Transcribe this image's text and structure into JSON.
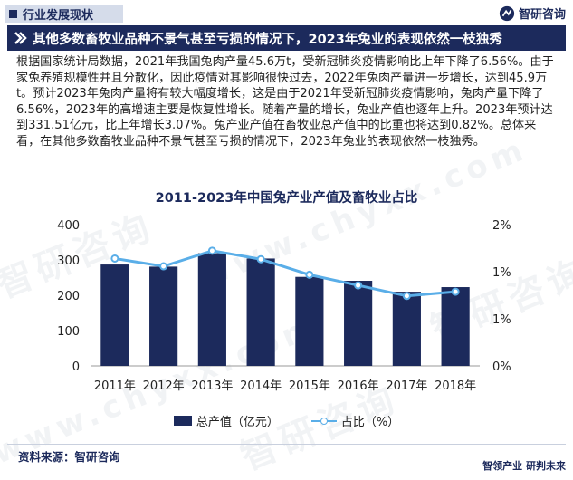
{
  "header": {
    "section_tag": "行业发展现状",
    "brand": "智研咨询",
    "headline": "其他多数畜牧业品种不景气甚至亏损的情况下，2023年兔业的表现依然一枝独秀"
  },
  "body_text": "根据国家统计局数据，2021年我国兔肉产量45.6万t，受新冠肺炎疫情影响比上年下降了6.56%。由于家兔养殖规模性并且分散化，因此疫情对其影响很快过去，2022年兔肉产量进一步增长，达到45.9万t。预计2023年兔肉产量将有较大幅度增长，这是由于2021年受新冠肺炎疫情影响，兔肉产量下降了6.56%，2023年的高增速主要是恢复性增长。随着产量的增长，兔业产值也逐年上升。2023年预计达到331.51亿元，比上年增长3.07%。兔产业产值在畜牧业总产值中的比重也将达到0.82%。总体来看，在其他多数畜牧业品种不景气甚至亏损的情况下，2023年兔业的表现依然一枝独秀。",
  "watermarks": [
    "智研咨询",
    "www.chyxx.com"
  ],
  "chart_data": {
    "type": "bar+line",
    "title": "2011-2023年中国兔产业产值及畜牧业占比",
    "categories": [
      "2011年",
      "2012年",
      "2013年",
      "2014年",
      "2015年",
      "2016年",
      "2017年",
      "2018年"
    ],
    "series": [
      {
        "name": "总产值（亿元）",
        "type": "bar",
        "axis": "left",
        "values": [
          287,
          281,
          319,
          304,
          252,
          241,
          210,
          223
        ]
      },
      {
        "name": "占比（%）",
        "type": "line",
        "axis": "right",
        "values": [
          1.52,
          1.41,
          1.63,
          1.51,
          1.29,
          1.14,
          0.99,
          1.05
        ]
      }
    ],
    "y_left": {
      "ylim": [
        0,
        400
      ],
      "ticks": [
        "0",
        "100",
        "200",
        "300",
        "400"
      ]
    },
    "y_right": {
      "ylim": [
        0,
        2
      ],
      "ticks": [
        "0%",
        "1%",
        "1%",
        "2%"
      ]
    },
    "grid": false,
    "legend": "bottom-center",
    "colors": {
      "bar": "#1c2a5c",
      "line": "#5aaee8"
    }
  },
  "footer": {
    "source": "资料来源：智研咨询",
    "tagline": "智领产业  研判未来"
  }
}
